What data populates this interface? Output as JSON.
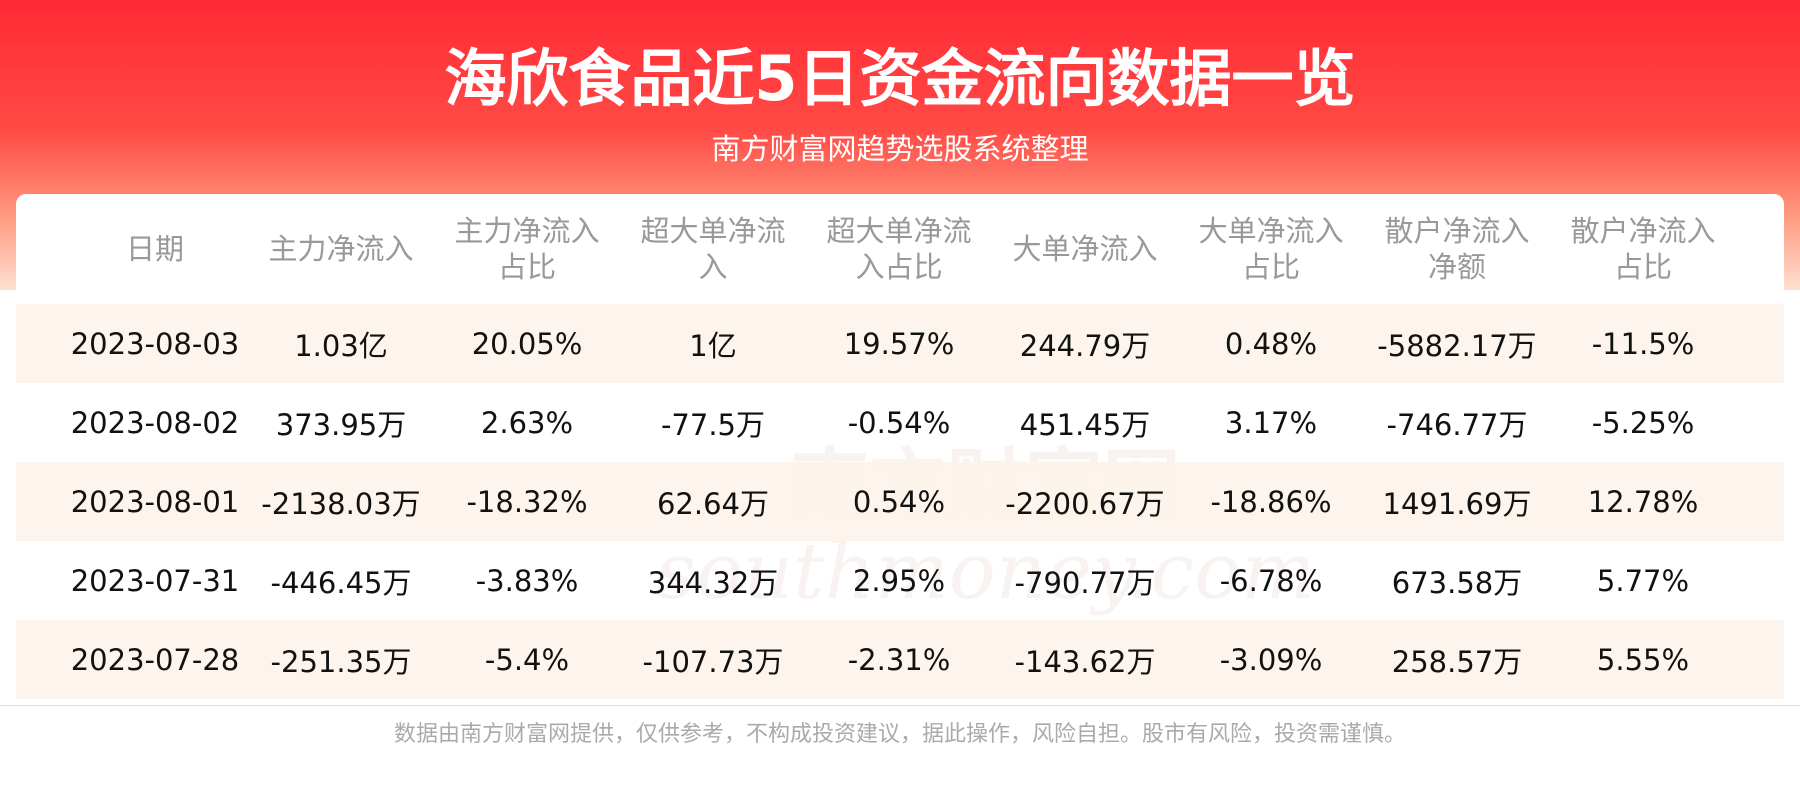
{
  "header": {
    "title": "海欣食品近5日资金流向数据一览",
    "subtitle": "南方财富网趋势选股系统整理"
  },
  "table": {
    "headers": [
      "日期",
      "主力净流入",
      "主力净流入占比",
      "超大单净流入",
      "超大单净流入占比",
      "大单净流入",
      "大单净流入占比",
      "散户净流入净额",
      "散户净流入占比"
    ],
    "rows": [
      [
        "2023-08-03",
        "1.03亿",
        "20.05%",
        "1亿",
        "19.57%",
        "244.79万",
        "0.48%",
        "-5882.17万",
        "-11.5%"
      ],
      [
        "2023-08-02",
        "373.95万",
        "2.63%",
        "-77.5万",
        "-0.54%",
        "451.45万",
        "3.17%",
        "-746.77万",
        "-5.25%"
      ],
      [
        "2023-08-01",
        "-2138.03万",
        "-18.32%",
        "62.64万",
        "0.54%",
        "-2200.67万",
        "-18.86%",
        "1491.69万",
        "12.78%"
      ],
      [
        "2023-07-31",
        "-446.45万",
        "-3.83%",
        "344.32万",
        "2.95%",
        "-790.77万",
        "-6.78%",
        "673.58万",
        "5.77%"
      ],
      [
        "2023-07-28",
        "-251.35万",
        "-5.4%",
        "-107.73万",
        "-2.31%",
        "-143.62万",
        "-3.09%",
        "258.57万",
        "5.55%"
      ]
    ]
  },
  "watermark": {
    "name": "南方财富网",
    "url": "southmoney.com"
  },
  "footer": "数据由南方财富网提供，仅供参考，不构成投资建议，据此操作，风险自担。股市有风险，投资需谨慎。"
}
